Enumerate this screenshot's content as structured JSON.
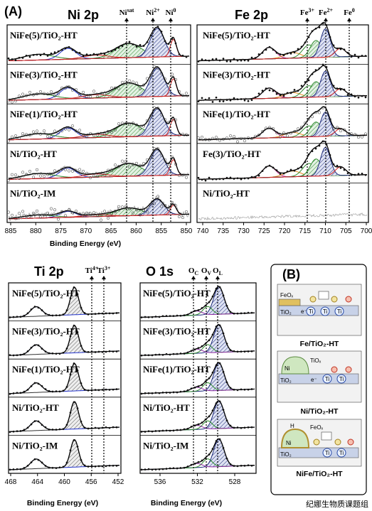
{
  "panel_a": {
    "label": "(A)",
    "ni": {
      "title": "Ni 2p",
      "peaks": [
        {
          "base": "Ni",
          "sup": "sat"
        },
        {
          "base": "Ni",
          "sup": "2+"
        },
        {
          "base": "Ni",
          "sup": "0"
        }
      ],
      "samples": [
        "NiFe(5)/TiO₂-HT",
        "NiFe(3)/TiO₂-HT",
        "NiFe(1)/TiO₂-HT",
        "Ni/TiO₂-HT",
        "Ni/TiO₂-IM"
      ],
      "xticks": [
        885,
        880,
        875,
        870,
        865,
        860,
        855,
        850
      ],
      "xlabel": "Binding Energy (eV)"
    },
    "fe": {
      "title": "Fe 2p",
      "peaks": [
        {
          "base": "Fe",
          "sup": "3+"
        },
        {
          "base": "Fe",
          "sup": "2+"
        },
        {
          "base": "Fe",
          "sup": "0"
        }
      ],
      "samples": [
        "NiFe(5)/TiO₂-HT",
        "NiFe(3)/TiO₂-HT",
        "NiFe(1)/TiO₂-HT",
        "Fe(3)/TiO₂-HT",
        "Ni/TiO₂-HT"
      ],
      "xticks": [
        740,
        735,
        730,
        725,
        720,
        715,
        710,
        705,
        700
      ]
    }
  },
  "ti": {
    "title": "Ti 2p",
    "peaks": [
      {
        "base": "Ti",
        "sup": "4+"
      },
      {
        "base": "Ti",
        "sup": "3+"
      }
    ],
    "samples": [
      "NiFe(5)/TiO₂-HT",
      "NiFe(3)/TiO₂-HT",
      "NiFe(1)/TiO₂-HT",
      "Ni/TiO₂-HT",
      "Ni/TiO₂-IM"
    ],
    "xticks": [
      468,
      464,
      460,
      456,
      452
    ],
    "xlabel": "Binding Energy (eV)"
  },
  "o": {
    "title": "O 1s",
    "peaks": [
      {
        "base": "O",
        "sub": "C"
      },
      {
        "base": "O",
        "sub": "V"
      },
      {
        "base": "O",
        "sub": "L"
      }
    ],
    "samples": [
      "NiFe(5)/TiO₂-HT",
      "NiFe(3)/TiO₂-HT",
      "NiFe(1)/TiO₂-HT",
      "Ni/TiO₂-HT",
      "Ni/TiO₂-IM"
    ],
    "xticks": [
      536,
      532,
      528
    ],
    "xlabel": "Binding Energy (eV)"
  },
  "panel_b": {
    "label": "(B)",
    "atom": "Ti",
    "electron": "e⁻",
    "support": "TiO₂",
    "schemes": [
      {
        "name": "Fe/TiO₂-HT",
        "species": "FeOₓ"
      },
      {
        "name": "Ni/TiO₂-HT",
        "species": "TiOₓ",
        "metal": "Ni"
      },
      {
        "name": "NiFe/TiO₂-HT",
        "species": "FeOₓ",
        "metal": "Ni",
        "hydrogen": "H"
      }
    ]
  },
  "watermark": "纪娜生物质课题组"
}
